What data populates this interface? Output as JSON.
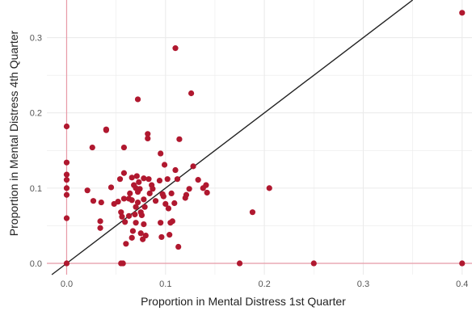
{
  "chart_data": {
    "type": "scatter",
    "title": "",
    "xlabel": "Proportion in Mental Distress 1st Quarter",
    "ylabel": "Proportion in Mental Distress 4th Quarter",
    "xlim": [
      -0.02,
      0.41
    ],
    "ylim": [
      -0.015,
      0.35
    ],
    "x_ticks": [
      0.0,
      0.1,
      0.2,
      0.3,
      0.4
    ],
    "x_tick_labels": [
      "0.0",
      "0.1",
      "0.2",
      "0.3",
      "0.4"
    ],
    "y_ticks": [
      0.0,
      0.1,
      0.2,
      0.3
    ],
    "y_tick_labels": [
      "0.0",
      "0.1",
      "0.2",
      "0.3"
    ],
    "grid": true,
    "legend": "none",
    "reference_lines": {
      "x_zero": true,
      "y_zero": true,
      "identity_line": true
    },
    "colors": {
      "points": "#b0182f",
      "reference": "#e89aa6",
      "identity": "#222222",
      "grid": "#ebebeb"
    },
    "points": [
      [
        0.0,
        0.182
      ],
      [
        0.0,
        0.134
      ],
      [
        0.0,
        0.118
      ],
      [
        0.0,
        0.111
      ],
      [
        0.0,
        0.1
      ],
      [
        0.0,
        0.091
      ],
      [
        0.0,
        0.06
      ],
      [
        0.0,
        0.0
      ],
      [
        0.021,
        0.097
      ],
      [
        0.026,
        0.154
      ],
      [
        0.027,
        0.083
      ],
      [
        0.034,
        0.056
      ],
      [
        0.034,
        0.047
      ],
      [
        0.035,
        0.081
      ],
      [
        0.04,
        0.178
      ],
      [
        0.04,
        0.177
      ],
      [
        0.045,
        0.101
      ],
      [
        0.048,
        0.079
      ],
      [
        0.052,
        0.082
      ],
      [
        0.054,
        0.112
      ],
      [
        0.055,
        0.068
      ],
      [
        0.055,
        0.0
      ],
      [
        0.056,
        0.062
      ],
      [
        0.057,
        0.0
      ],
      [
        0.058,
        0.154
      ],
      [
        0.058,
        0.12
      ],
      [
        0.058,
        0.086
      ],
      [
        0.059,
        0.055
      ],
      [
        0.06,
        0.026
      ],
      [
        0.063,
        0.086
      ],
      [
        0.063,
        0.063
      ],
      [
        0.064,
        0.093
      ],
      [
        0.066,
        0.114
      ],
      [
        0.066,
        0.084
      ],
      [
        0.066,
        0.034
      ],
      [
        0.067,
        0.043
      ],
      [
        0.068,
        0.104
      ],
      [
        0.069,
        0.065
      ],
      [
        0.07,
        0.1
      ],
      [
        0.07,
        0.075
      ],
      [
        0.07,
        0.054
      ],
      [
        0.071,
        0.116
      ],
      [
        0.072,
        0.095
      ],
      [
        0.072,
        0.218
      ],
      [
        0.072,
        0.081
      ],
      [
        0.073,
        0.108
      ],
      [
        0.074,
        0.099
      ],
      [
        0.075,
        0.068
      ],
      [
        0.075,
        0.04
      ],
      [
        0.076,
        0.064
      ],
      [
        0.077,
        0.032
      ],
      [
        0.078,
        0.113
      ],
      [
        0.078,
        0.085
      ],
      [
        0.078,
        0.052
      ],
      [
        0.079,
        0.075
      ],
      [
        0.08,
        0.037
      ],
      [
        0.082,
        0.172
      ],
      [
        0.082,
        0.166
      ],
      [
        0.083,
        0.112
      ],
      [
        0.084,
        0.093
      ],
      [
        0.086,
        0.104
      ],
      [
        0.087,
        0.099
      ],
      [
        0.09,
        0.083
      ],
      [
        0.094,
        0.11
      ],
      [
        0.095,
        0.146
      ],
      [
        0.095,
        0.054
      ],
      [
        0.096,
        0.035
      ],
      [
        0.097,
        0.092
      ],
      [
        0.098,
        0.089
      ],
      [
        0.099,
        0.131
      ],
      [
        0.1,
        0.079
      ],
      [
        0.102,
        0.112
      ],
      [
        0.103,
        0.073
      ],
      [
        0.104,
        0.038
      ],
      [
        0.105,
        0.054
      ],
      [
        0.106,
        0.093
      ],
      [
        0.107,
        0.056
      ],
      [
        0.109,
        0.08
      ],
      [
        0.11,
        0.286
      ],
      [
        0.11,
        0.124
      ],
      [
        0.112,
        0.112
      ],
      [
        0.113,
        0.022
      ],
      [
        0.114,
        0.165
      ],
      [
        0.12,
        0.087
      ],
      [
        0.121,
        0.091
      ],
      [
        0.124,
        0.099
      ],
      [
        0.126,
        0.226
      ],
      [
        0.128,
        0.129
      ],
      [
        0.133,
        0.111
      ],
      [
        0.138,
        0.1
      ],
      [
        0.141,
        0.104
      ],
      [
        0.142,
        0.094
      ],
      [
        0.175,
        0.0
      ],
      [
        0.188,
        0.068
      ],
      [
        0.205,
        0.1
      ],
      [
        0.25,
        0.0
      ],
      [
        0.4,
        0.333
      ],
      [
        0.4,
        0.0
      ]
    ]
  }
}
